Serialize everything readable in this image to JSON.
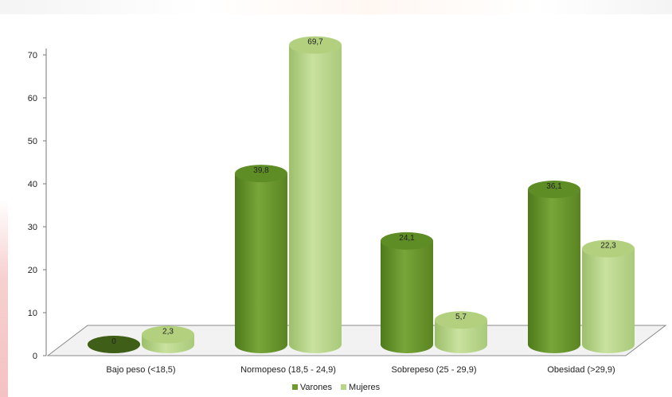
{
  "colors": {
    "varones": "#6f9a2e",
    "mujeres": "#b8d58a",
    "axis": "#444444"
  },
  "chart_data": {
    "type": "bar",
    "categories": [
      "Bajo peso (<18,5)",
      "Normopeso (18,5 - 24,9)",
      "Sobrepeso (25 - 29,9)",
      "Obesidad (>29,9)"
    ],
    "series": [
      {
        "name": "Varones",
        "values": [
          0,
          39.8,
          24.1,
          36.1
        ],
        "labels": [
          "0",
          "39,8",
          "24,1",
          "36,1"
        ]
      },
      {
        "name": "Mujeres",
        "values": [
          2.3,
          69.7,
          5.7,
          22.3
        ],
        "labels": [
          "2,3",
          "69,7",
          "5,7",
          "22,3"
        ]
      }
    ],
    "ylim": [
      0,
      70
    ],
    "yticks": [
      "0",
      "10",
      "20",
      "30",
      "40",
      "50",
      "60",
      "70"
    ],
    "grid": false,
    "legend_position": "bottom-center",
    "style": "3d-cylinder"
  }
}
